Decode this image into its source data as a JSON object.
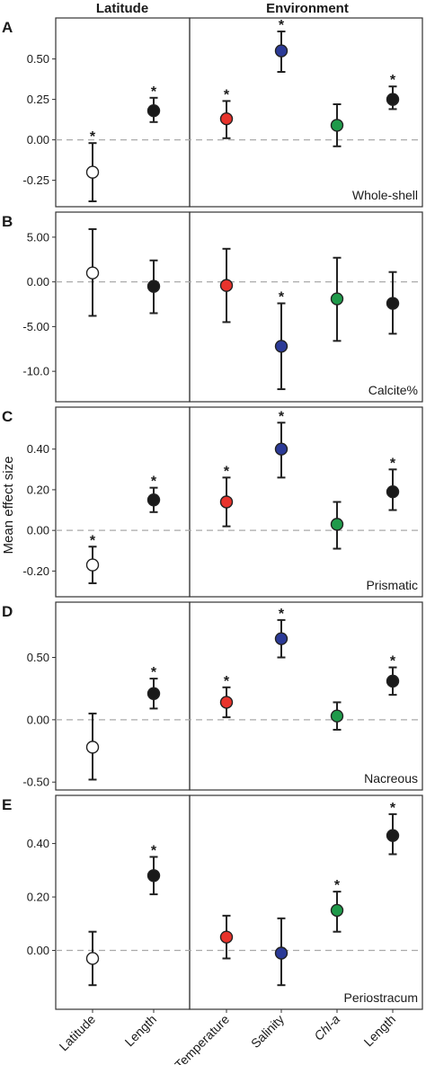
{
  "figure": {
    "headers": {
      "left": "Latitude",
      "right": "Environment"
    },
    "y_axis_label": "Mean effect size"
  },
  "colors": {
    "latitude": "#ffffff",
    "length": "#1a1a1a",
    "temperature": "#e8332c",
    "salinity": "#2b3a97",
    "chla": "#1f9a4a",
    "outline": "#222222"
  },
  "chart_data": [
    {
      "type": "scatter",
      "panel": "A",
      "label": "Whole-shell",
      "ylim": [
        -0.38,
        0.72
      ],
      "yticks": [
        -0.25,
        0.0,
        0.25,
        0.5
      ],
      "ytick_labels": [
        "-0.25",
        "0.00",
        "0.25",
        "0.50"
      ],
      "left": [
        {
          "x": "Latitude",
          "mean": -0.2,
          "lo": -0.38,
          "hi": -0.02,
          "color": "latitude",
          "sig": true
        },
        {
          "x": "Length",
          "mean": 0.18,
          "lo": 0.11,
          "hi": 0.26,
          "color": "length",
          "sig": true
        }
      ],
      "right": [
        {
          "x": "Temperature",
          "mean": 0.13,
          "lo": 0.01,
          "hi": 0.24,
          "color": "temperature",
          "sig": true
        },
        {
          "x": "Salinity",
          "mean": 0.55,
          "lo": 0.42,
          "hi": 0.67,
          "color": "salinity",
          "sig": true
        },
        {
          "x": "Chl-a",
          "mean": 0.09,
          "lo": -0.04,
          "hi": 0.22,
          "color": "chla",
          "sig": false
        },
        {
          "x": "Length",
          "mean": 0.25,
          "lo": 0.19,
          "hi": 0.33,
          "color": "length",
          "sig": true
        }
      ]
    },
    {
      "type": "scatter",
      "panel": "B",
      "label": "Calcite%",
      "ylim": [
        -12.8,
        7.2
      ],
      "yticks": [
        -10,
        -5,
        0,
        5
      ],
      "ytick_labels": [
        "-10.0",
        "-5.00",
        "0.00",
        "5.00"
      ],
      "left": [
        {
          "x": "Latitude",
          "mean": 1.0,
          "lo": -3.8,
          "hi": 5.9,
          "color": "latitude",
          "sig": false
        },
        {
          "x": "Length",
          "mean": -0.5,
          "lo": -3.5,
          "hi": 2.4,
          "color": "length",
          "sig": false
        }
      ],
      "right": [
        {
          "x": "Temperature",
          "mean": -0.4,
          "lo": -4.5,
          "hi": 3.7,
          "color": "temperature",
          "sig": false
        },
        {
          "x": "Salinity",
          "mean": -7.2,
          "lo": -12.0,
          "hi": -2.4,
          "color": "salinity",
          "sig": true
        },
        {
          "x": "Chl-a",
          "mean": -1.9,
          "lo": -6.6,
          "hi": 2.7,
          "color": "chla",
          "sig": false
        },
        {
          "x": "Length",
          "mean": -2.4,
          "lo": -5.8,
          "hi": 1.1,
          "color": "length",
          "sig": false
        }
      ]
    },
    {
      "type": "scatter",
      "panel": "C",
      "label": "Prismatic",
      "ylim": [
        -0.3,
        0.58
      ],
      "yticks": [
        -0.2,
        0.0,
        0.2,
        0.4
      ],
      "ytick_labels": [
        "-0.20",
        "0.00",
        "0.20",
        "0.40"
      ],
      "left": [
        {
          "x": "Latitude",
          "mean": -0.17,
          "lo": -0.26,
          "hi": -0.08,
          "color": "latitude",
          "sig": true
        },
        {
          "x": "Length",
          "mean": 0.15,
          "lo": 0.09,
          "hi": 0.21,
          "color": "length",
          "sig": true
        }
      ],
      "right": [
        {
          "x": "Temperature",
          "mean": 0.14,
          "lo": 0.02,
          "hi": 0.26,
          "color": "temperature",
          "sig": true
        },
        {
          "x": "Salinity",
          "mean": 0.4,
          "lo": 0.26,
          "hi": 0.53,
          "color": "salinity",
          "sig": true
        },
        {
          "x": "Chl-a",
          "mean": 0.03,
          "lo": -0.09,
          "hi": 0.14,
          "color": "chla",
          "sig": false
        },
        {
          "x": "Length",
          "mean": 0.19,
          "lo": 0.1,
          "hi": 0.3,
          "color": "length",
          "sig": true
        }
      ]
    },
    {
      "type": "scatter",
      "panel": "D",
      "label": "Nacreous",
      "ylim": [
        -0.52,
        0.9
      ],
      "yticks": [
        -0.5,
        0.0,
        0.5
      ],
      "ytick_labels": [
        "-0.50",
        "0.00",
        "0.50"
      ],
      "left": [
        {
          "x": "Latitude",
          "mean": -0.22,
          "lo": -0.48,
          "hi": 0.05,
          "color": "latitude",
          "sig": false
        },
        {
          "x": "Length",
          "mean": 0.21,
          "lo": 0.09,
          "hi": 0.33,
          "color": "length",
          "sig": true
        }
      ],
      "right": [
        {
          "x": "Temperature",
          "mean": 0.14,
          "lo": 0.02,
          "hi": 0.26,
          "color": "temperature",
          "sig": true
        },
        {
          "x": "Salinity",
          "mean": 0.65,
          "lo": 0.5,
          "hi": 0.8,
          "color": "salinity",
          "sig": true
        },
        {
          "x": "Chl-a",
          "mean": 0.03,
          "lo": -0.08,
          "hi": 0.14,
          "color": "chla",
          "sig": false
        },
        {
          "x": "Length",
          "mean": 0.31,
          "lo": 0.2,
          "hi": 0.42,
          "color": "length",
          "sig": true
        }
      ]
    },
    {
      "type": "scatter",
      "panel": "E",
      "label": "Periostracum",
      "ylim": [
        -0.2,
        0.56
      ],
      "yticks": [
        0.0,
        0.2,
        0.4
      ],
      "ytick_labels": [
        "0.00",
        "0.20",
        "0.40"
      ],
      "left": [
        {
          "x": "Latitude",
          "mean": -0.03,
          "lo": -0.13,
          "hi": 0.07,
          "color": "latitude",
          "sig": false
        },
        {
          "x": "Length",
          "mean": 0.28,
          "lo": 0.21,
          "hi": 0.35,
          "color": "length",
          "sig": true
        }
      ],
      "right": [
        {
          "x": "Temperature",
          "mean": 0.05,
          "lo": -0.03,
          "hi": 0.13,
          "color": "temperature",
          "sig": false
        },
        {
          "x": "Salinity",
          "mean": -0.01,
          "lo": -0.13,
          "hi": 0.12,
          "color": "salinity",
          "sig": false
        },
        {
          "x": "Chl-a",
          "mean": 0.15,
          "lo": 0.07,
          "hi": 0.22,
          "color": "chla",
          "sig": true
        },
        {
          "x": "Length",
          "mean": 0.43,
          "lo": 0.36,
          "hi": 0.51,
          "color": "length",
          "sig": true
        }
      ]
    }
  ],
  "x_categories": {
    "left": [
      "Latitude",
      "Length"
    ],
    "right": [
      "Temperature",
      "Salinity",
      "Chl-a",
      "Length"
    ]
  }
}
